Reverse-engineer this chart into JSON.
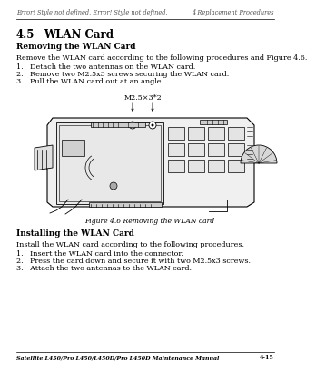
{
  "bg_color": "#ffffff",
  "header_text": "Error! Style not defined. Error! Style not defined.",
  "header_right": "4 Replacement Procedures",
  "header_font_size": 4.8,
  "section_title_num": "4.5",
  "section_title_text": "WLAN Card",
  "section_title_font_size": 8.5,
  "subsection1": "Removing the WLAN Card",
  "subsection_font_size": 6.5,
  "intro1": "Remove the WLAN card according to the following procedures and Figure 4.6.",
  "intro_font_size": 5.8,
  "steps_remove": [
    "1.   Detach the two antennas on the WLAN card.",
    "2.   Remove two M2.5x3 screws securing the WLAN card.",
    "3.   Pull the WLAN card out at an angle."
  ],
  "steps_font_size": 5.8,
  "label_screw": "M2.5×3*2",
  "label_font_size": 5.8,
  "fig_caption": "Figure 4.6 Removing the WLAN card",
  "fig_caption_font_size": 5.5,
  "subsection2": "Installing the WLAN Card",
  "intro2": "Install the WLAN card according to the following procedures.",
  "steps_install": [
    "1.   Insert the WLAN card into the connector.",
    "2.   Press the card down and secure it with two M2.5x3 screws.",
    "3.   Attach the two antennas to the WLAN card."
  ],
  "footer_left": "Satellite L450/Pro L450/L450D/Pro L450D Maintenance Manual",
  "footer_right": "4-15",
  "footer_font_size": 4.5,
  "text_color": "#000000"
}
